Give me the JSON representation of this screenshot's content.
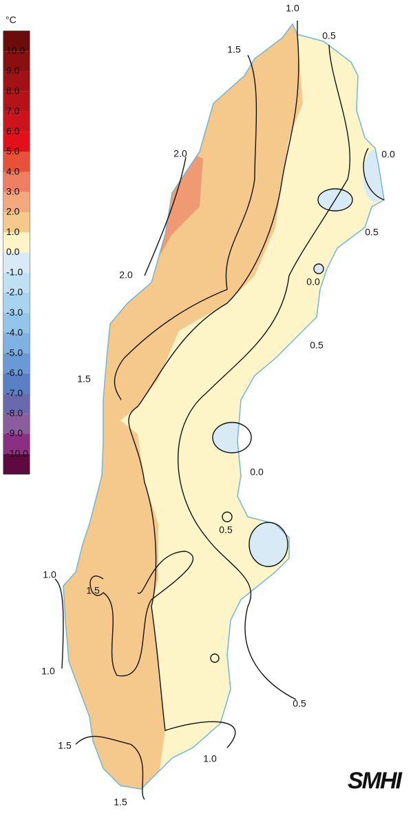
{
  "legend": {
    "unit": "°C",
    "labels": [
      "10.0",
      "9.0",
      "8.0",
      "7.0",
      "6.0",
      "5.0",
      "4.0",
      "3.0",
      "2.0",
      "1.0",
      "0.0",
      "-1.0",
      "-2.0",
      "-3.0",
      "-4.0",
      "-5.0",
      "-6.0",
      "-7.0",
      "-8.0",
      "-9.0",
      "-10.0"
    ],
    "colors": [
      "#6b0d0d",
      "#8b0f10",
      "#a11116",
      "#b51319",
      "#cc141c",
      "#e3101c",
      "#e8503a",
      "#ef7f62",
      "#f3a87e",
      "#f5c98c",
      "#fdf5c8",
      "#d8eaf6",
      "#c0e0f3",
      "#a8d4f0",
      "#93c4ea",
      "#7fb2e2",
      "#6a9ad6",
      "#5a7fc4",
      "#6a69ad",
      "#8a5e9e",
      "#8b2f82",
      "#5c0a40"
    ]
  },
  "contour_labels": [
    "1.0",
    "0.5",
    "1.5",
    "2.0",
    "0.0",
    "0.5",
    "2.0",
    "0.0",
    "0.5",
    "1.5",
    "0.0",
    "0.5",
    "1.0",
    "1.5",
    "1.0",
    "0.5",
    "1.5",
    "1.0",
    "1.5"
  ],
  "logo": "SMHI"
}
